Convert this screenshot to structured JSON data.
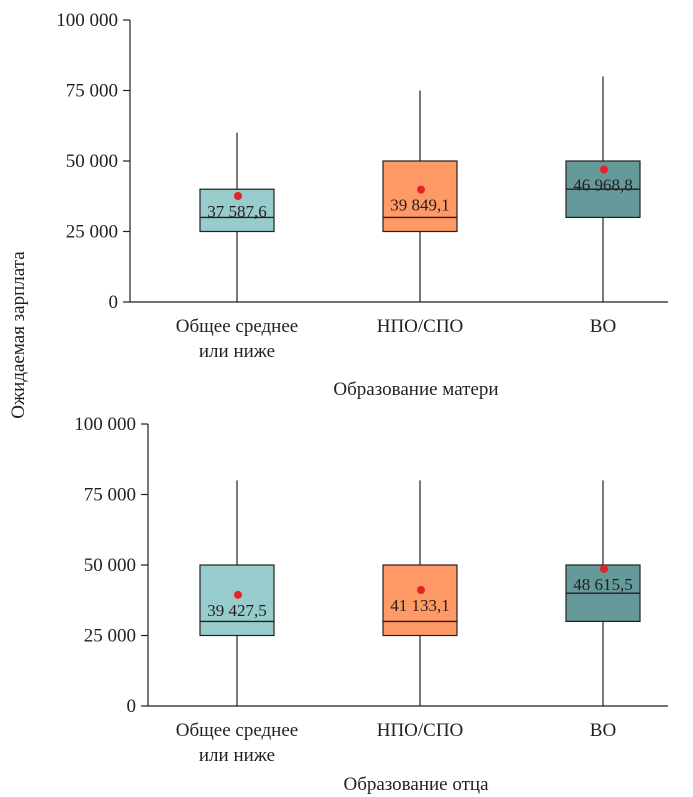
{
  "shared_ylabel": "Ожидаемая зарплата",
  "colors": {
    "box_fills": [
      "#98cccc",
      "#ff9966",
      "#669999"
    ],
    "mean_marker": "#e8202a"
  },
  "chart_data": [
    {
      "type": "boxplot",
      "xlabel": "Образование матери",
      "ylabel": "Ожидаемая зарплата",
      "ylim": [
        0,
        100000
      ],
      "yticks": [
        0,
        25000,
        50000,
        75000,
        100000
      ],
      "ytick_labels": [
        "0",
        "25 000",
        "50 000",
        "75 000",
        "100 000"
      ],
      "categories": [
        [
          "Общее среднее",
          "или ниже"
        ],
        [
          "НПО/СПО"
        ],
        [
          "ВО"
        ]
      ],
      "boxes": [
        {
          "whisker_low": 0,
          "q1": 25000,
          "median": 30000,
          "q3": 40000,
          "whisker_high": 60000,
          "mean": 37587.6,
          "mean_label": "37 587,6"
        },
        {
          "whisker_low": 0,
          "q1": 25000,
          "median": 30000,
          "q3": 50000,
          "whisker_high": 75000,
          "mean": 39849.1,
          "mean_label": "39 849,1"
        },
        {
          "whisker_low": 0,
          "q1": 30000,
          "median": 40000,
          "q3": 50000,
          "whisker_high": 80000,
          "mean": 46968.8,
          "mean_label": "46 968,8"
        }
      ]
    },
    {
      "type": "boxplot",
      "xlabel": "Образование отца",
      "ylabel": "Ожидаемая зарплата",
      "ylim": [
        0,
        100000
      ],
      "yticks": [
        0,
        25000,
        50000,
        75000,
        100000
      ],
      "ytick_labels": [
        "0",
        "25 000",
        "50 000",
        "75 000",
        "100 000"
      ],
      "categories": [
        [
          "Общее среднее",
          "или ниже"
        ],
        [
          "НПО/СПО"
        ],
        [
          "ВО"
        ]
      ],
      "boxes": [
        {
          "whisker_low": 0,
          "q1": 25000,
          "median": 30000,
          "q3": 50000,
          "whisker_high": 80000,
          "mean": 39427.5,
          "mean_label": "39 427,5"
        },
        {
          "whisker_low": 0,
          "q1": 25000,
          "median": 30000,
          "q3": 50000,
          "whisker_high": 80000,
          "mean": 41133.1,
          "mean_label": "41 133,1"
        },
        {
          "whisker_low": 0,
          "q1": 30000,
          "median": 40000,
          "q3": 50000,
          "whisker_high": 80000,
          "mean": 48615.5,
          "mean_label": "48 615,5"
        }
      ]
    }
  ]
}
